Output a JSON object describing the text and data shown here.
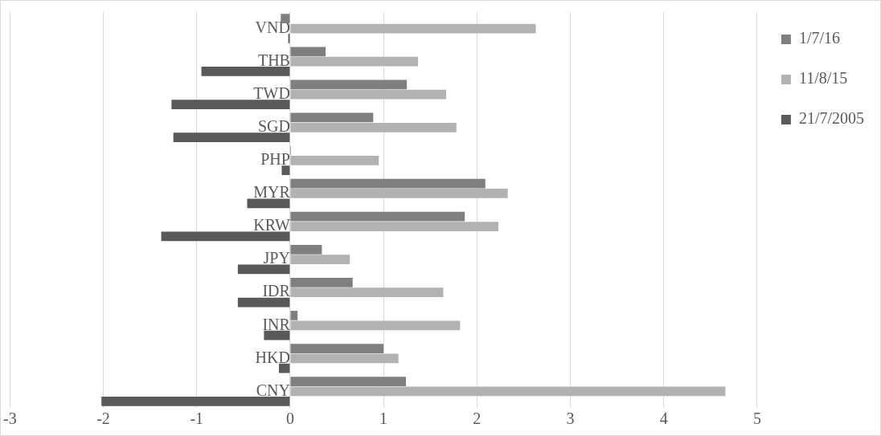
{
  "chart_data": {
    "type": "bar",
    "orientation": "horizontal",
    "categories": [
      "VND",
      "THB",
      "TWD",
      "SGD",
      "PHP",
      "MYR",
      "KRW",
      "JPY",
      "IDR",
      "INR",
      "HKD",
      "CNY"
    ],
    "series": [
      {
        "name": "1/7/16",
        "color": "#7f7f7f",
        "values": [
          -0.1,
          0.38,
          1.25,
          0.89,
          0.01,
          2.09,
          1.87,
          0.34,
          0.67,
          0.08,
          1.0,
          1.24
        ]
      },
      {
        "name": "11/8/15",
        "color": "#b2b2b2",
        "values": [
          2.63,
          1.37,
          1.67,
          1.78,
          0.95,
          2.33,
          2.23,
          0.64,
          1.64,
          1.82,
          1.16,
          4.66
        ]
      },
      {
        "name": "21/7/2005",
        "color": "#595959",
        "values": [
          -0.02,
          -0.95,
          -1.27,
          -1.25,
          -0.09,
          -0.46,
          -1.38,
          -0.56,
          -0.56,
          -0.28,
          -0.12,
          -2.02
        ]
      }
    ],
    "xlim": [
      -3,
      5
    ],
    "xticks": [
      -3,
      -2,
      -1,
      0,
      1,
      2,
      3,
      4,
      5
    ],
    "grid": "x",
    "legend": "right"
  }
}
